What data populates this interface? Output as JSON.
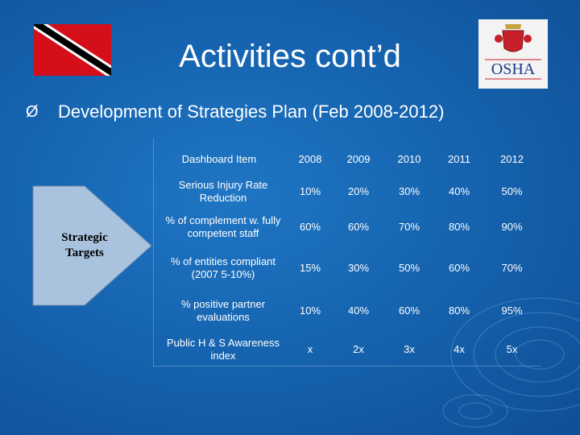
{
  "slide": {
    "title": "Activities cont’d",
    "bullet_marker": "Ø",
    "bullet_text": "Development of Strategies Plan (Feb 2008-2012)",
    "arrow_label": "Strategic Targets"
  },
  "logo": {
    "text": "OSHA"
  },
  "table": {
    "headers": [
      "Dashboard Item",
      "2008",
      "2009",
      "2010",
      "2011",
      "2012"
    ],
    "rows": [
      {
        "item": "Serious Injury Rate Reduction",
        "values": [
          "10%",
          "20%",
          "30%",
          "40%",
          "50%"
        ]
      },
      {
        "item": "% of complement w. fully competent staff",
        "values": [
          "60%",
          "60%",
          "70%",
          "80%",
          "90%"
        ]
      },
      {
        "item": "% of entities compliant (2007 5-10%)",
        "values": [
          "15%",
          "30%",
          "50%",
          "60%",
          "70%"
        ]
      },
      {
        "item": "% positive partner evaluations",
        "values": [
          "10%",
          "40%",
          "60%",
          "80%",
          "95%"
        ]
      },
      {
        "item": "Public H & S Awareness index",
        "values": [
          "x",
          "2x",
          "3x",
          "4x",
          "5x"
        ]
      }
    ]
  },
  "colors": {
    "background": "#1664b0",
    "flag_red": "#d40f1a",
    "arrow_fill": "#a9c2dd"
  }
}
